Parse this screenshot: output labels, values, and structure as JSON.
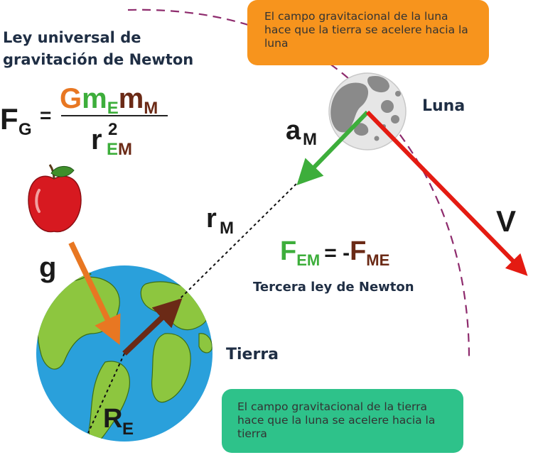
{
  "title": "Ley universal de gravitación de Newton",
  "formula": {
    "lhs": "F",
    "lhs_sub": "G",
    "equals": "=",
    "num_G": "G",
    "num_m1": "m",
    "num_m1_sub": "E",
    "num_m2": "m",
    "num_m2_sub": "M",
    "den_r": "r",
    "den_exp": "2",
    "den_sub_E": "E",
    "den_sub_M": "M"
  },
  "third_law": {
    "label": "Tercera ley de Newton",
    "f1": "F",
    "f1_sub": "EM",
    "eq": "= -",
    "f2": "F",
    "f2_sub": "ME"
  },
  "boxes": {
    "top": "El campo gravitacional de la luna hace que la tierra se acelere hacia la luna",
    "bottom": "El campo gravitacional de la tierra hace que la luna se acelere hacia la tierra"
  },
  "labels": {
    "moon": "Luna",
    "earth": "Tierra",
    "aM": "a",
    "aM_sub": "M",
    "rM": "r",
    "rM_sub": "M",
    "g": "g",
    "V": "V",
    "RE": "R",
    "RE_sub": "E"
  },
  "colors": {
    "orange": "#e87722",
    "green": "#3dae3b",
    "brown": "#6b2a16",
    "red": "#e41b12",
    "purple": "#8e2b6d",
    "navy": "#1f2e44",
    "box_orange": "#f7941d",
    "box_green": "#2ec28a"
  },
  "icons": [
    "earth-icon",
    "moon-icon",
    "apple-icon"
  ]
}
